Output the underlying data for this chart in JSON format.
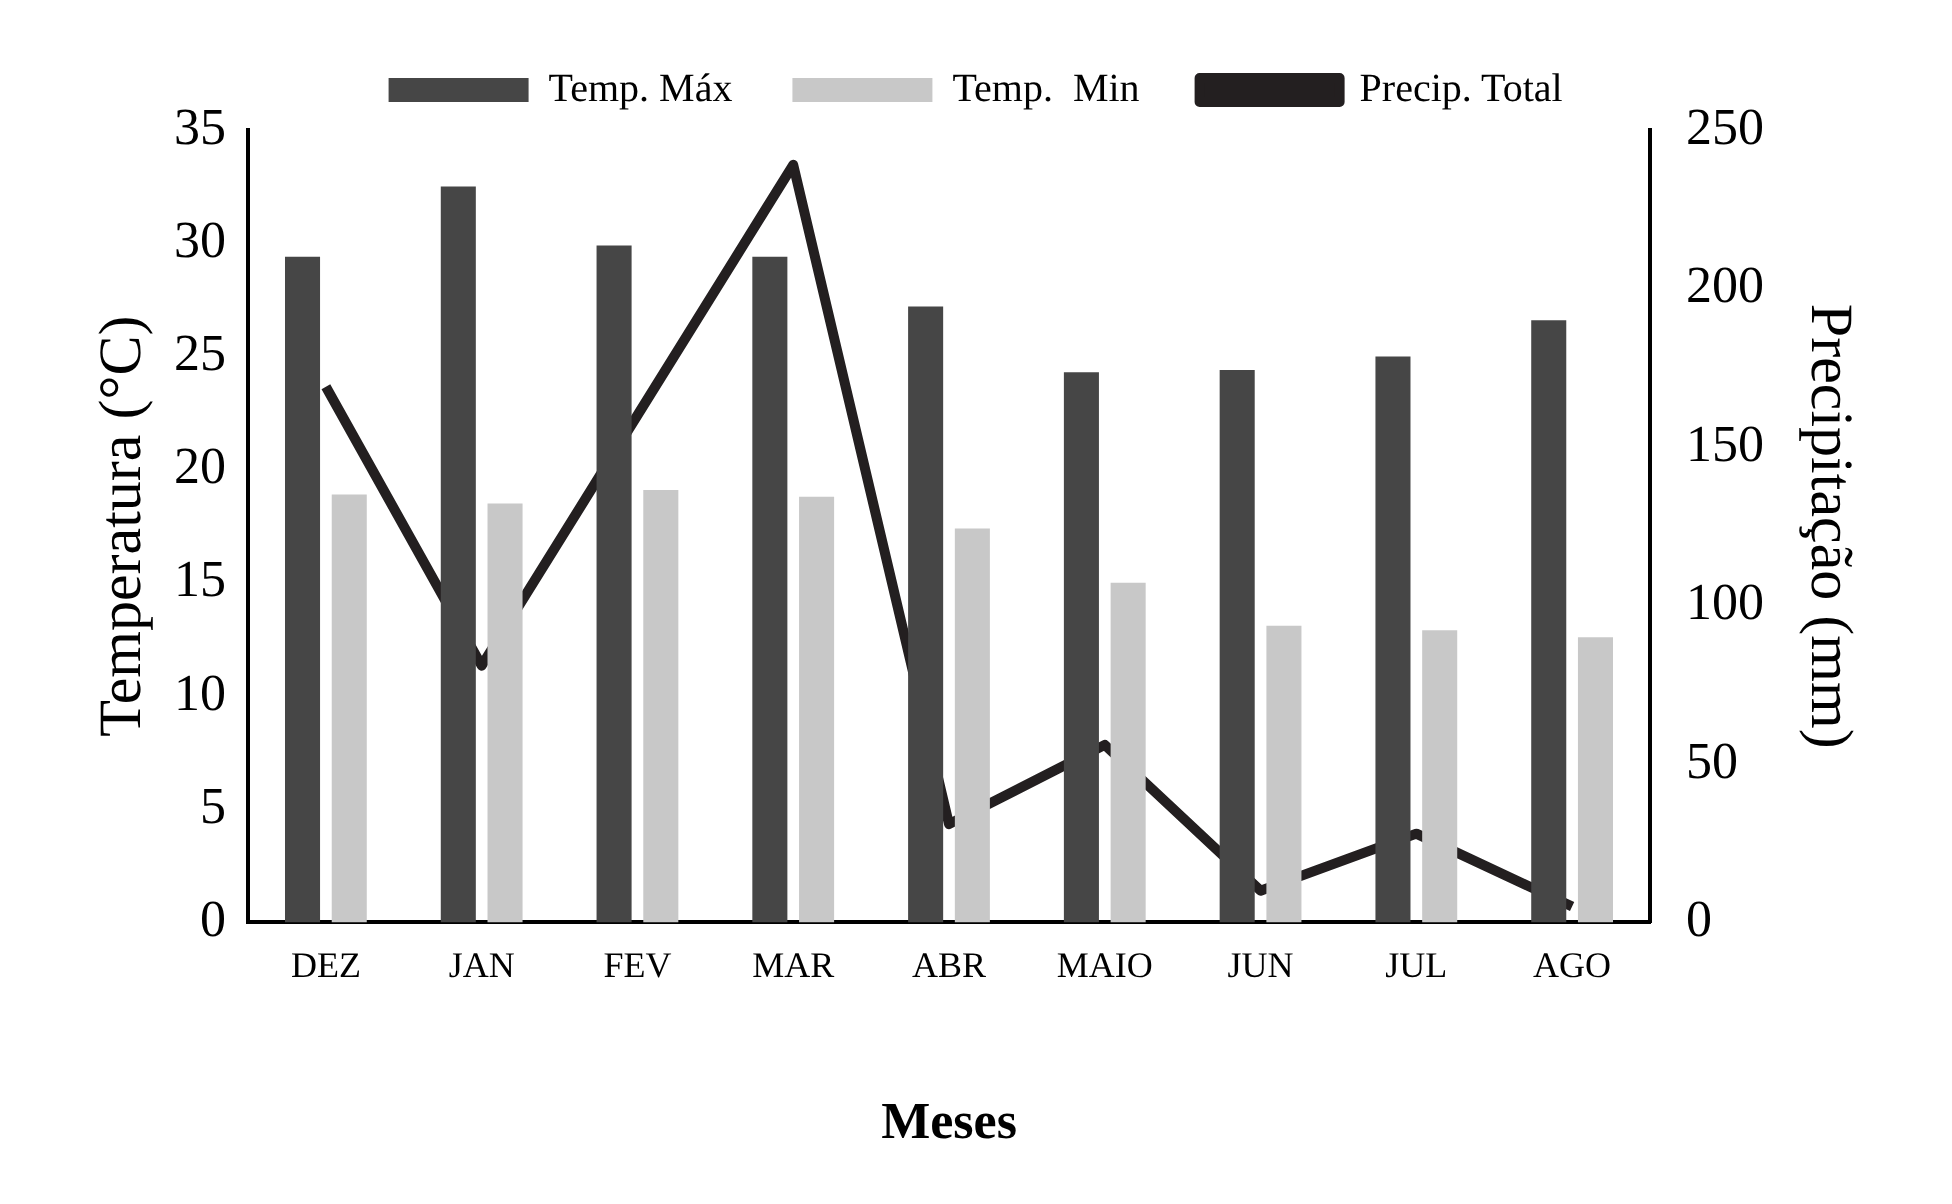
{
  "chart_data": {
    "type": "bar",
    "xlabel": "Meses",
    "ylabel": "Temperatura (°C)",
    "y2label": "Precipitação (mm)",
    "categories": [
      "DEZ",
      "JAN",
      "FEV",
      "MAR",
      "ABR",
      "MAIO",
      "JUN",
      "JUL",
      "AGO"
    ],
    "series": [
      {
        "name": "Temp. Máx",
        "color": "#464646",
        "values": [
          29.4,
          32.5,
          29.9,
          29.4,
          27.2,
          24.3,
          24.4,
          25.0,
          26.6
        ]
      },
      {
        "name": "Temp.  Min",
        "color": "#c8c8c8",
        "values": [
          18.9,
          18.5,
          19.1,
          18.8,
          17.4,
          15.0,
          13.1,
          12.9,
          12.6
        ]
      },
      {
        "name": "Precip. Total",
        "type": "line",
        "axis": "y2",
        "color": "#231f20",
        "values": [
          169,
          81,
          160,
          239,
          31,
          56,
          10,
          28,
          5
        ]
      }
    ],
    "ylim": [
      0,
      35
    ],
    "yticks": [
      0,
      5,
      10,
      15,
      20,
      25,
      30,
      35
    ],
    "y2lim": [
      0,
      250
    ],
    "y2ticks": [
      0,
      50,
      100,
      150,
      200,
      250
    ],
    "grid": false,
    "legend": "top",
    "marker": "none",
    "line_style": "solid"
  }
}
